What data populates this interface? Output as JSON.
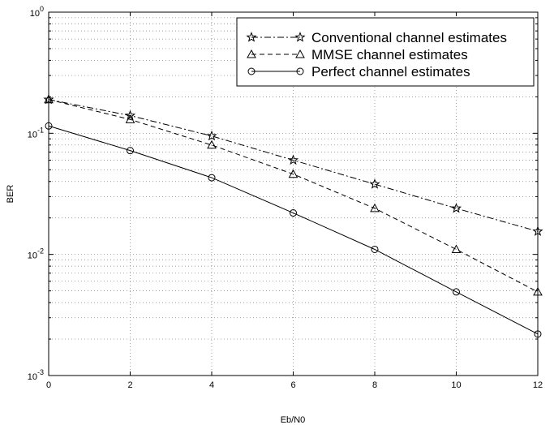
{
  "chart_data": {
    "type": "line",
    "title": "",
    "xlabel": "Eb/N0",
    "ylabel": "BER",
    "xlim": [
      0,
      12
    ],
    "ylim": [
      0.001,
      1
    ],
    "yscale": "log",
    "grid": true,
    "legend_position": "top-right",
    "x": [
      0,
      2,
      4,
      6,
      8,
      10,
      12
    ],
    "x_ticks": [
      "0",
      "2",
      "4",
      "6",
      "8",
      "10",
      "12"
    ],
    "y_ticks": [
      {
        "base": "10",
        "exp": "0",
        "value": 1
      },
      {
        "base": "10",
        "exp": "-1",
        "value": 0.1
      },
      {
        "base": "10",
        "exp": "-2",
        "value": 0.01
      },
      {
        "base": "10",
        "exp": "-3",
        "value": 0.001
      }
    ],
    "series": [
      {
        "name": "Conventional channel estimates",
        "marker": "star",
        "line_style": "dash-dot",
        "values": [
          0.19,
          0.14,
          0.095,
          0.06,
          0.038,
          0.024,
          0.0155
        ]
      },
      {
        "name": "MMSE channel estimates",
        "marker": "triangle",
        "line_style": "dashed",
        "values": [
          0.19,
          0.13,
          0.08,
          0.046,
          0.024,
          0.011,
          0.0049
        ]
      },
      {
        "name": "Perfect channel estimates",
        "marker": "circle",
        "line_style": "solid",
        "values": [
          0.115,
          0.072,
          0.043,
          0.022,
          0.011,
          0.0049,
          0.0022
        ]
      }
    ]
  }
}
